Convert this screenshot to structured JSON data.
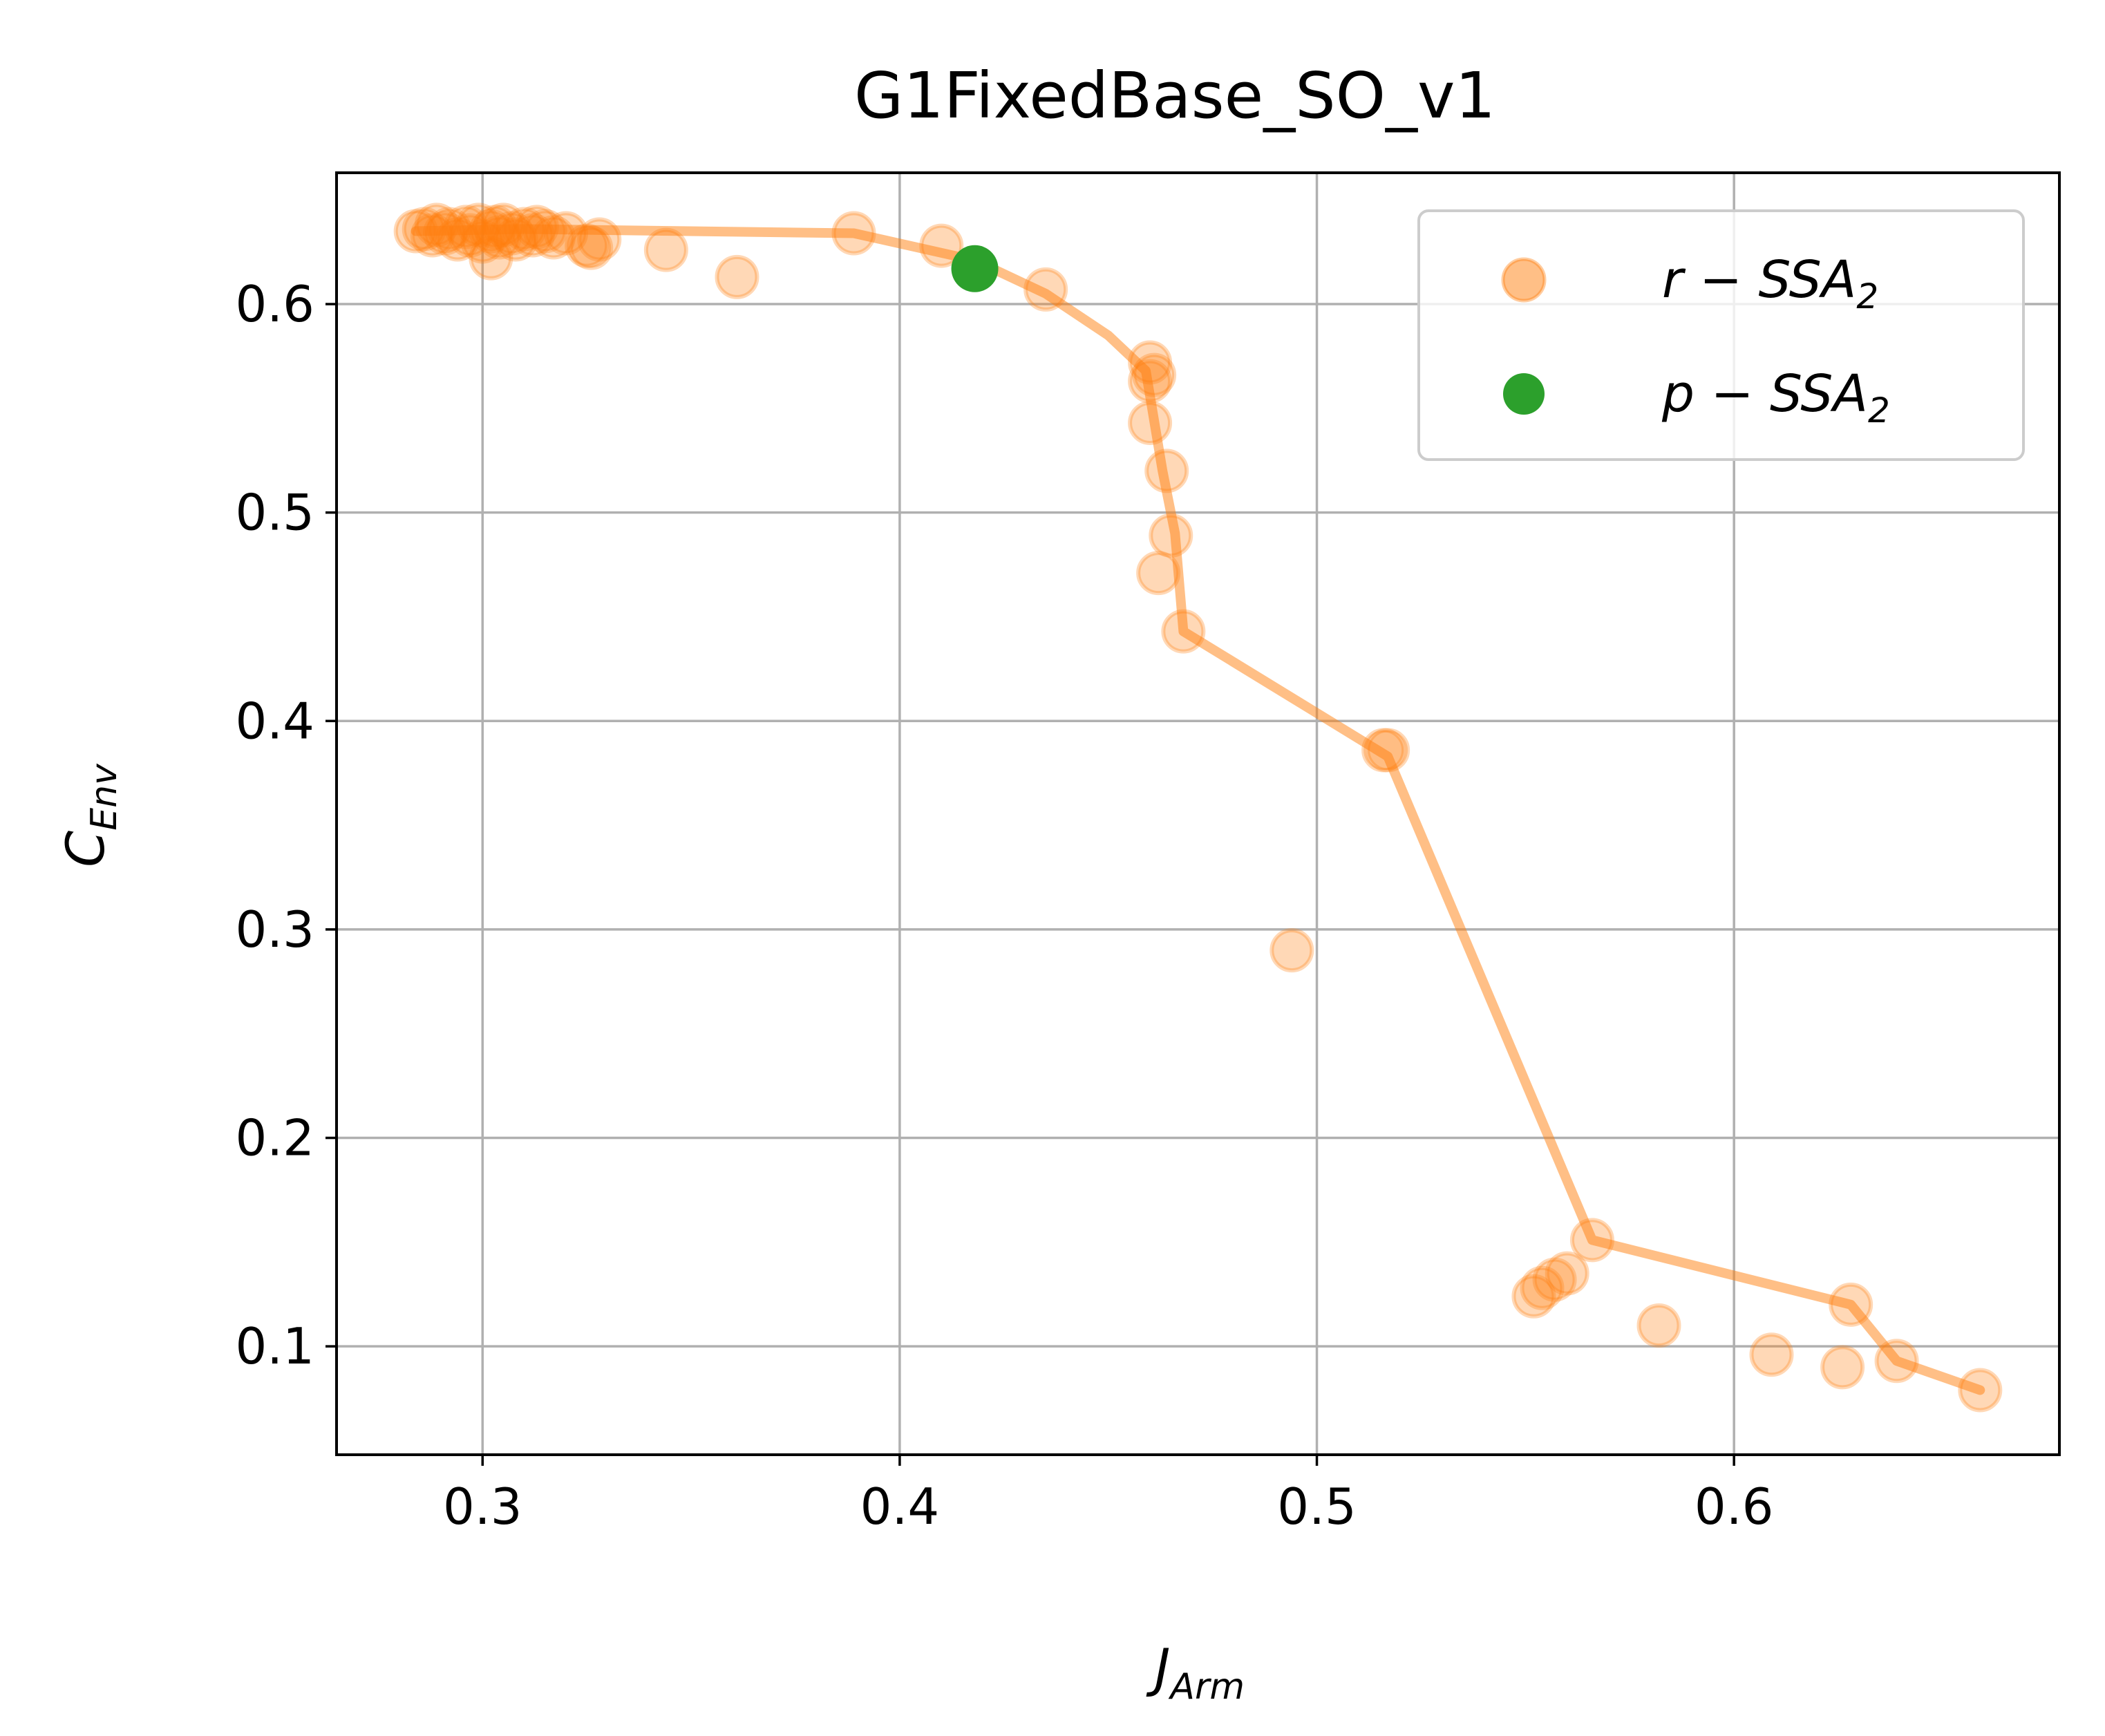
{
  "chart_data": {
    "type": "scatter",
    "title": "G1FixedBase_SO_v1",
    "xlabel": {
      "base": "J",
      "sub": "Arm"
    },
    "ylabel": {
      "base": "C",
      "sub": "Env"
    },
    "xlim": [
      0.265,
      0.678
    ],
    "ylim": [
      0.048,
      0.663
    ],
    "xticks": [
      0.3,
      0.4,
      0.5,
      0.6
    ],
    "xtick_labels": [
      "0.3",
      "0.4",
      "0.5",
      "0.6"
    ],
    "yticks": [
      0.1,
      0.2,
      0.3,
      0.4,
      0.5,
      0.6
    ],
    "ytick_labels": [
      "0.1",
      "0.2",
      "0.3",
      "0.4",
      "0.5",
      "0.6"
    ],
    "grid": true,
    "legend_position": "top-right",
    "series": [
      {
        "name": "r-SSA2",
        "label_main": "r − SSA",
        "label_sub": "2",
        "color": "#ff7f0e",
        "kind": "scatter",
        "points": [
          [
            0.284,
            0.635
          ],
          [
            0.286,
            0.636
          ],
          [
            0.288,
            0.633
          ],
          [
            0.289,
            0.638
          ],
          [
            0.291,
            0.634
          ],
          [
            0.292,
            0.636
          ],
          [
            0.294,
            0.631
          ],
          [
            0.296,
            0.637
          ],
          [
            0.297,
            0.633
          ],
          [
            0.299,
            0.638
          ],
          [
            0.3,
            0.63
          ],
          [
            0.302,
            0.635
          ],
          [
            0.303,
            0.637
          ],
          [
            0.304,
            0.632
          ],
          [
            0.305,
            0.638
          ],
          [
            0.307,
            0.634
          ],
          [
            0.308,
            0.631
          ],
          [
            0.31,
            0.636
          ],
          [
            0.312,
            0.633
          ],
          [
            0.313,
            0.637
          ],
          [
            0.315,
            0.635
          ],
          [
            0.317,
            0.632
          ],
          [
            0.302,
            0.622
          ],
          [
            0.32,
            0.634
          ],
          [
            0.325,
            0.628
          ],
          [
            0.326,
            0.627
          ],
          [
            0.328,
            0.631
          ],
          [
            0.344,
            0.626
          ],
          [
            0.361,
            0.613
          ],
          [
            0.389,
            0.634
          ],
          [
            0.41,
            0.628
          ],
          [
            0.435,
            0.607
          ],
          [
            0.46,
            0.572
          ],
          [
            0.46,
            0.563
          ],
          [
            0.461,
            0.566
          ],
          [
            0.46,
            0.543
          ],
          [
            0.464,
            0.52
          ],
          [
            0.465,
            0.489
          ],
          [
            0.462,
            0.471
          ],
          [
            0.468,
            0.443
          ],
          [
            0.516,
            0.386
          ],
          [
            0.517,
            0.386
          ],
          [
            0.494,
            0.29
          ],
          [
            0.552,
            0.124
          ],
          [
            0.554,
            0.128
          ],
          [
            0.557,
            0.132
          ],
          [
            0.56,
            0.135
          ],
          [
            0.566,
            0.151
          ],
          [
            0.582,
            0.11
          ],
          [
            0.609,
            0.096
          ],
          [
            0.626,
            0.09
          ],
          [
            0.628,
            0.12
          ],
          [
            0.639,
            0.093
          ],
          [
            0.659,
            0.079
          ]
        ]
      },
      {
        "name": "p-SSA2",
        "label_main": "p − SSA",
        "label_sub": "2",
        "color": "#2ca02c",
        "kind": "scatter",
        "points": [
          [
            0.418,
            0.617
          ]
        ]
      }
    ],
    "frontier_line": {
      "color": "#ff7f0e",
      "points": [
        [
          0.284,
          0.635
        ],
        [
          0.31,
          0.636
        ],
        [
          0.389,
          0.634
        ],
        [
          0.418,
          0.621
        ],
        [
          0.435,
          0.605
        ],
        [
          0.45,
          0.585
        ],
        [
          0.459,
          0.568
        ],
        [
          0.463,
          0.52
        ],
        [
          0.466,
          0.49
        ],
        [
          0.468,
          0.443
        ],
        [
          0.517,
          0.383
        ],
        [
          0.566,
          0.151
        ],
        [
          0.628,
          0.12
        ],
        [
          0.639,
          0.093
        ],
        [
          0.659,
          0.079
        ]
      ]
    }
  }
}
